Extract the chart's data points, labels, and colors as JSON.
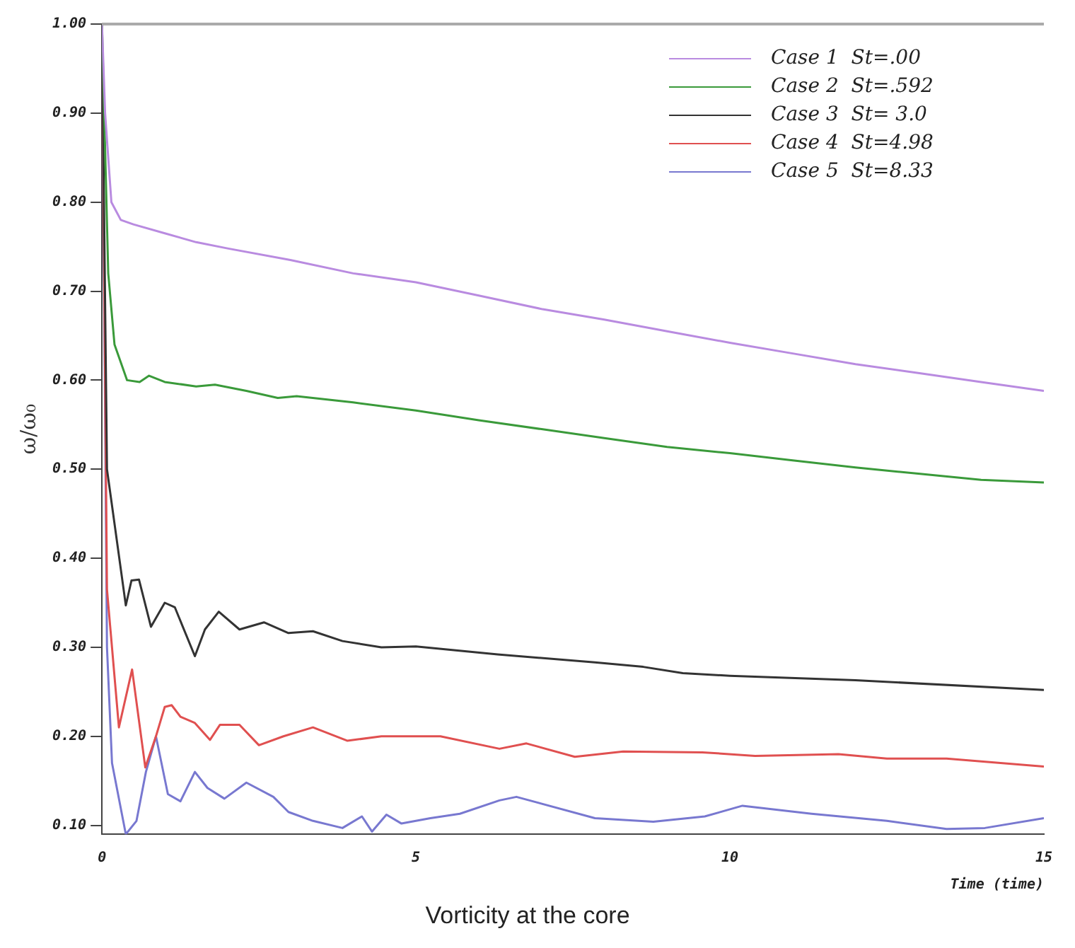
{
  "chart_data": {
    "type": "line",
    "title": "Vorticity at the core",
    "xlabel": "Time (time)",
    "ylabel": "ω/ω₀",
    "xlim": [
      0,
      15
    ],
    "xticks": [
      0,
      5,
      10,
      15
    ],
    "ylim": [
      0.09,
      1.0
    ],
    "yticks": [
      {
        "value": 0.1,
        "label": "0.10"
      },
      {
        "value": 0.2,
        "label": "0.20"
      },
      {
        "value": 0.3,
        "label": "0.30"
      },
      {
        "value": 0.4,
        "label": "0.40"
      },
      {
        "value": 0.5,
        "label": "0.50"
      },
      {
        "value": 0.6,
        "label": "0.60"
      },
      {
        "value": 0.7,
        "label": "0.70"
      },
      {
        "value": 0.8,
        "label": "0.80"
      },
      {
        "value": 0.9,
        "label": "0.90"
      },
      {
        "value": 1.0,
        "label": "1.00"
      }
    ],
    "grid": false,
    "legend": "top right",
    "marker": "none",
    "line_style": "solid",
    "series": [
      {
        "name": "Case 1  St=.00",
        "color": "#b98be0",
        "x": [
          0,
          0.05,
          0.15,
          0.3,
          0.5,
          1,
          1.5,
          2,
          3,
          4,
          5,
          6,
          7,
          8,
          9,
          10,
          11,
          12,
          13,
          14,
          15
        ],
        "values": [
          1.0,
          0.9,
          0.8,
          0.78,
          0.775,
          0.765,
          0.755,
          0.748,
          0.735,
          0.72,
          0.71,
          0.695,
          0.68,
          0.668,
          0.655,
          0.642,
          0.63,
          0.618,
          0.608,
          0.598,
          0.588
        ]
      },
      {
        "name": "Case 2  St=.592",
        "color": "#3a9a3a",
        "x": [
          0,
          0.1,
          0.2,
          0.4,
          0.6,
          0.75,
          1,
          1.5,
          1.8,
          2.3,
          2.8,
          3.1,
          4,
          5,
          6,
          7,
          8,
          9,
          10,
          11,
          12,
          13,
          14,
          15
        ],
        "values": [
          1.0,
          0.72,
          0.64,
          0.6,
          0.598,
          0.605,
          0.598,
          0.593,
          0.595,
          0.588,
          0.58,
          0.582,
          0.575,
          0.566,
          0.555,
          0.545,
          0.535,
          0.525,
          0.518,
          0.51,
          0.502,
          0.495,
          0.488,
          0.485
        ]
      },
      {
        "name": "Case 3  St= 3.0",
        "color": "#333333",
        "x": [
          0,
          0.08,
          0.38,
          0.47,
          0.59,
          0.78,
          1.0,
          1.16,
          1.48,
          1.64,
          1.86,
          2.19,
          2.58,
          2.97,
          3.36,
          3.83,
          4.45,
          5,
          6.3,
          7.85,
          8.62,
          9.25,
          10,
          12,
          15
        ],
        "values": [
          1.0,
          0.5,
          0.347,
          0.375,
          0.376,
          0.323,
          0.35,
          0.345,
          0.29,
          0.32,
          0.34,
          0.32,
          0.328,
          0.316,
          0.318,
          0.307,
          0.3,
          0.301,
          0.292,
          0.283,
          0.278,
          0.271,
          0.268,
          0.263,
          0.252
        ]
      },
      {
        "name": "Case 4  St=4.98",
        "color": "#e05050",
        "x": [
          0,
          0.08,
          0.27,
          0.48,
          0.69,
          0.86,
          1.0,
          1.11,
          1.25,
          1.48,
          1.72,
          1.88,
          2.19,
          2.5,
          2.89,
          3.36,
          3.91,
          4.45,
          5.39,
          6.33,
          6.76,
          7.53,
          8.3,
          9.56,
          10.4,
          11.73,
          12.5,
          13.45,
          15
        ],
        "values": [
          1.0,
          0.365,
          0.21,
          0.275,
          0.165,
          0.2,
          0.233,
          0.235,
          0.222,
          0.215,
          0.196,
          0.213,
          0.213,
          0.19,
          0.2,
          0.21,
          0.195,
          0.2,
          0.2,
          0.186,
          0.192,
          0.177,
          0.183,
          0.182,
          0.178,
          0.18,
          0.175,
          0.175,
          0.166
        ]
      },
      {
        "name": "Case 5  St=8.33",
        "color": "#7878d0",
        "x": [
          0,
          0.08,
          0.16,
          0.38,
          0.55,
          0.7,
          0.86,
          1.05,
          1.25,
          1.48,
          1.68,
          1.95,
          2.3,
          2.73,
          2.97,
          3.36,
          3.83,
          4.14,
          4.3,
          4.53,
          4.77,
          5.23,
          5.7,
          6.33,
          6.6,
          7.85,
          8.78,
          9.6,
          10.2,
          11.3,
          12.5,
          13.45,
          14.06,
          15
        ],
        "values": [
          1.0,
          0.3,
          0.17,
          0.09,
          0.105,
          0.16,
          0.2,
          0.135,
          0.127,
          0.16,
          0.142,
          0.13,
          0.148,
          0.132,
          0.115,
          0.105,
          0.097,
          0.11,
          0.093,
          0.112,
          0.102,
          0.108,
          0.113,
          0.128,
          0.132,
          0.108,
          0.104,
          0.11,
          0.122,
          0.113,
          0.105,
          0.096,
          0.097,
          0.108
        ]
      }
    ]
  }
}
